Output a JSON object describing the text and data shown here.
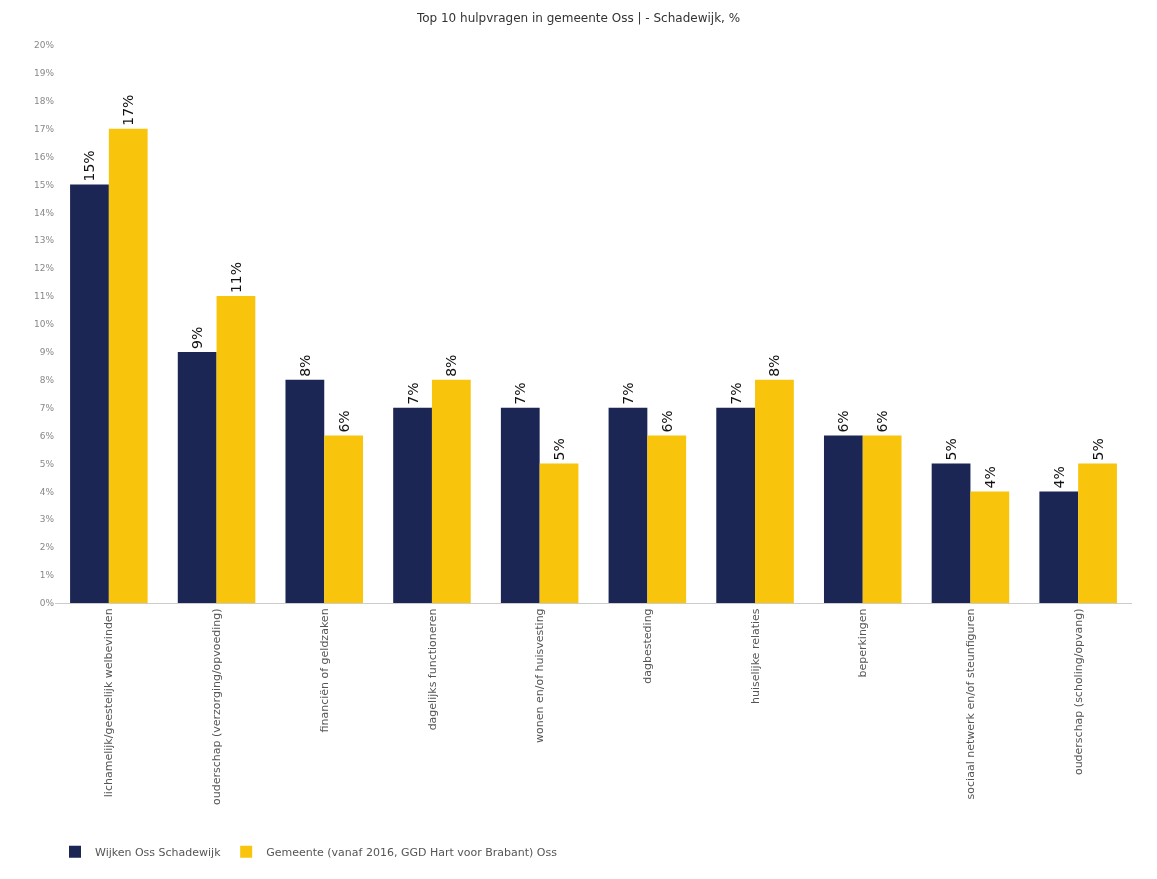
{
  "chart_data": {
    "type": "bar",
    "title": "Top 10 hulpvragen in gemeente Oss | - Schadewijk, %",
    "categories": [
      "lichamelijk/geestelijk welbevinden",
      "ouderschap (verzorging/opvoeding)",
      "financiën of geldzaken",
      "dagelijks functioneren",
      "wonen en/of huisvesting",
      "dagbesteding",
      "huiselijke relaties",
      "beperkingen",
      "sociaal netwerk en/of steunfiguren",
      "ouderschap (scholing/opvang)"
    ],
    "series": [
      {
        "name": "Wijken Oss Schadewijk",
        "color": "#1b2654",
        "values": [
          15,
          9,
          8,
          7,
          7,
          7,
          7,
          6,
          5,
          4
        ],
        "value_labels": [
          "15%",
          "9%",
          "8%",
          "7%",
          "7%",
          "7%",
          "7%",
          "6%",
          "5%",
          "4%"
        ]
      },
      {
        "name": "Gemeente (vanaf 2016, GGD Hart voor Brabant) Oss",
        "color": "#f8c40c",
        "values": [
          17,
          11,
          6,
          8,
          5,
          6,
          8,
          6,
          4,
          5
        ],
        "value_labels": [
          "17%",
          "11%",
          "6%",
          "8%",
          "5%",
          "6%",
          "8%",
          "6%",
          "4%",
          "5%"
        ]
      }
    ],
    "ylim": [
      0,
      20
    ],
    "yticks": [
      {
        "value": 0,
        "label": "0%"
      },
      {
        "value": 1,
        "label": "1%"
      },
      {
        "value": 2,
        "label": "2%"
      },
      {
        "value": 3,
        "label": "3%"
      },
      {
        "value": 4,
        "label": "4%"
      },
      {
        "value": 5,
        "label": "5%"
      },
      {
        "value": 6,
        "label": "6%"
      },
      {
        "value": 7,
        "label": "7%"
      },
      {
        "value": 8,
        "label": "8%"
      },
      {
        "value": 9,
        "label": "9%"
      },
      {
        "value": 10,
        "label": "10%"
      },
      {
        "value": 11,
        "label": "11%"
      },
      {
        "value": 12,
        "label": "12%"
      },
      {
        "value": 13,
        "label": "13%"
      },
      {
        "value": 14,
        "label": "14%"
      },
      {
        "value": 15,
        "label": "15%"
      },
      {
        "value": 16,
        "label": "16%"
      },
      {
        "value": 17,
        "label": "17%"
      },
      {
        "value": 18,
        "label": "18%"
      },
      {
        "value": 19,
        "label": "19%"
      },
      {
        "value": 20,
        "label": "20%"
      }
    ],
    "grid": false,
    "legend": "bottom left"
  }
}
